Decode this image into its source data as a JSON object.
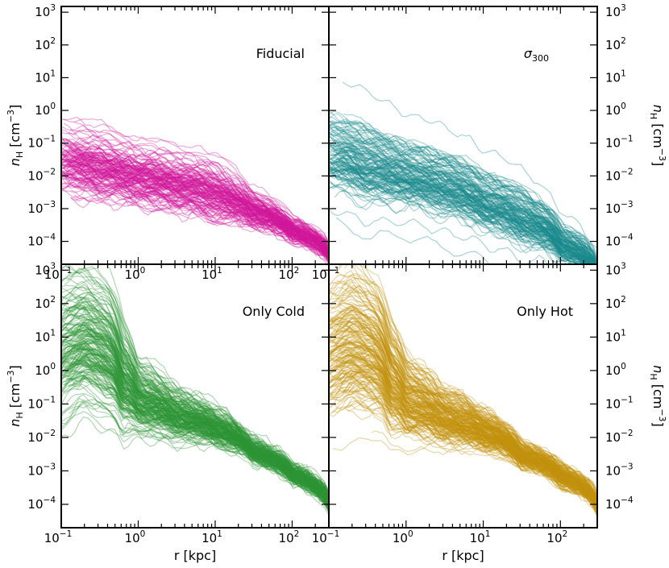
{
  "chart_data": [
    {
      "type": "line",
      "panel": "top-left",
      "title": "Fiducial",
      "title_symbol": "",
      "title_subscript": "",
      "color": "#d1169b",
      "xlabel": "",
      "ylabel": "n_H [cm^-3]",
      "ylabel_side": "left",
      "xscale": "log",
      "yscale": "log",
      "xlim": [
        0.1,
        300
      ],
      "ylim": [
        2e-05,
        1500
      ],
      "xticks": [
        "10^-1",
        "10^0",
        "10^1",
        "10^2",
        "10^-1"
      ],
      "yticks": [
        "10^-4",
        "10^-3",
        "10^-2",
        "10^-1",
        "10^0",
        "10^1",
        "10^2",
        "10^3"
      ],
      "envelope": {
        "r": [
          0.1,
          0.3,
          1,
          3,
          10,
          30,
          100,
          300
        ],
        "median": [
          0.025,
          0.015,
          0.008,
          0.005,
          0.0025,
          0.0008,
          0.0002,
          4e-05
        ],
        "spread": [
          0.9,
          0.9,
          0.8,
          0.8,
          0.8,
          0.5,
          0.3,
          0.25
        ]
      },
      "n_profiles": 150
    },
    {
      "type": "line",
      "panel": "top-right",
      "title": "",
      "title_symbol": "σ",
      "title_subscript": "300",
      "color": "#1b8a8c",
      "xlabel": "",
      "ylabel": "n_H [cm^-3]",
      "ylabel_side": "right",
      "xscale": "log",
      "yscale": "log",
      "xlim": [
        0.1,
        300
      ],
      "ylim": [
        2e-05,
        1500
      ],
      "xticks": [],
      "yticks": [
        "10^-4",
        "10^-3",
        "10^-2",
        "10^-1",
        "10^0",
        "10^1",
        "10^2",
        "10^3"
      ],
      "envelope": {
        "r": [
          0.1,
          0.3,
          1,
          3,
          10,
          30,
          100,
          300
        ],
        "median": [
          0.05,
          0.02,
          0.01,
          0.005,
          0.0015,
          0.0005,
          8e-05,
          1e-05
        ],
        "spread": [
          1.2,
          1.2,
          1.0,
          1.0,
          0.9,
          0.9,
          0.6,
          0.4
        ]
      },
      "n_profiles": 150
    },
    {
      "type": "line",
      "panel": "bottom-left",
      "title": "Only Cold",
      "title_symbol": "",
      "title_subscript": "",
      "color": "#2e9437",
      "xlabel": "r [kpc]",
      "ylabel": "n_H [cm^-3]",
      "ylabel_side": "left",
      "xscale": "log",
      "yscale": "log",
      "xlim": [
        0.1,
        300
      ],
      "ylim": [
        2e-05,
        1500
      ],
      "xticks": [
        "10^-1",
        "10^0",
        "10^1",
        "10^2",
        "10^-1"
      ],
      "yticks": [
        "10^-4",
        "10^-3",
        "10^-2",
        "10^-1",
        "10^0",
        "10^1",
        "10^2",
        "10^3"
      ],
      "envelope": {
        "r": [
          0.1,
          0.2,
          0.4,
          0.6,
          1,
          3,
          10,
          30,
          100,
          300
        ],
        "median": [
          5,
          10,
          4,
          0.6,
          0.15,
          0.05,
          0.02,
          0.004,
          0.0008,
          0.00012
        ],
        "spread": [
          2.0,
          1.8,
          1.8,
          1.5,
          1.0,
          0.7,
          0.5,
          0.3,
          0.25,
          0.2
        ]
      },
      "n_profiles": 200
    },
    {
      "type": "line",
      "panel": "bottom-right",
      "title": "Only Hot",
      "title_symbol": "",
      "title_subscript": "",
      "color": "#c4930f",
      "xlabel": "r [kpc]",
      "ylabel": "n_H [cm^-3]",
      "ylabel_side": "right",
      "xscale": "log",
      "yscale": "log",
      "xlim": [
        0.1,
        300
      ],
      "ylim": [
        2e-05,
        1500
      ],
      "xticks": [
        "10^0",
        "10^1",
        "10^2"
      ],
      "yticks": [
        "10^-4",
        "10^-3",
        "10^-2",
        "10^-1",
        "10^0",
        "10^1",
        "10^2",
        "10^3"
      ],
      "envelope": {
        "r": [
          0.1,
          0.2,
          0.4,
          0.6,
          1,
          3,
          10,
          30,
          100,
          300
        ],
        "median": [
          3,
          6,
          3,
          0.5,
          0.12,
          0.04,
          0.015,
          0.003,
          0.0007,
          0.0001
        ],
        "spread": [
          1.8,
          1.8,
          1.6,
          1.4,
          1.0,
          0.7,
          0.5,
          0.3,
          0.25,
          0.2
        ]
      },
      "n_profiles": 200
    }
  ]
}
